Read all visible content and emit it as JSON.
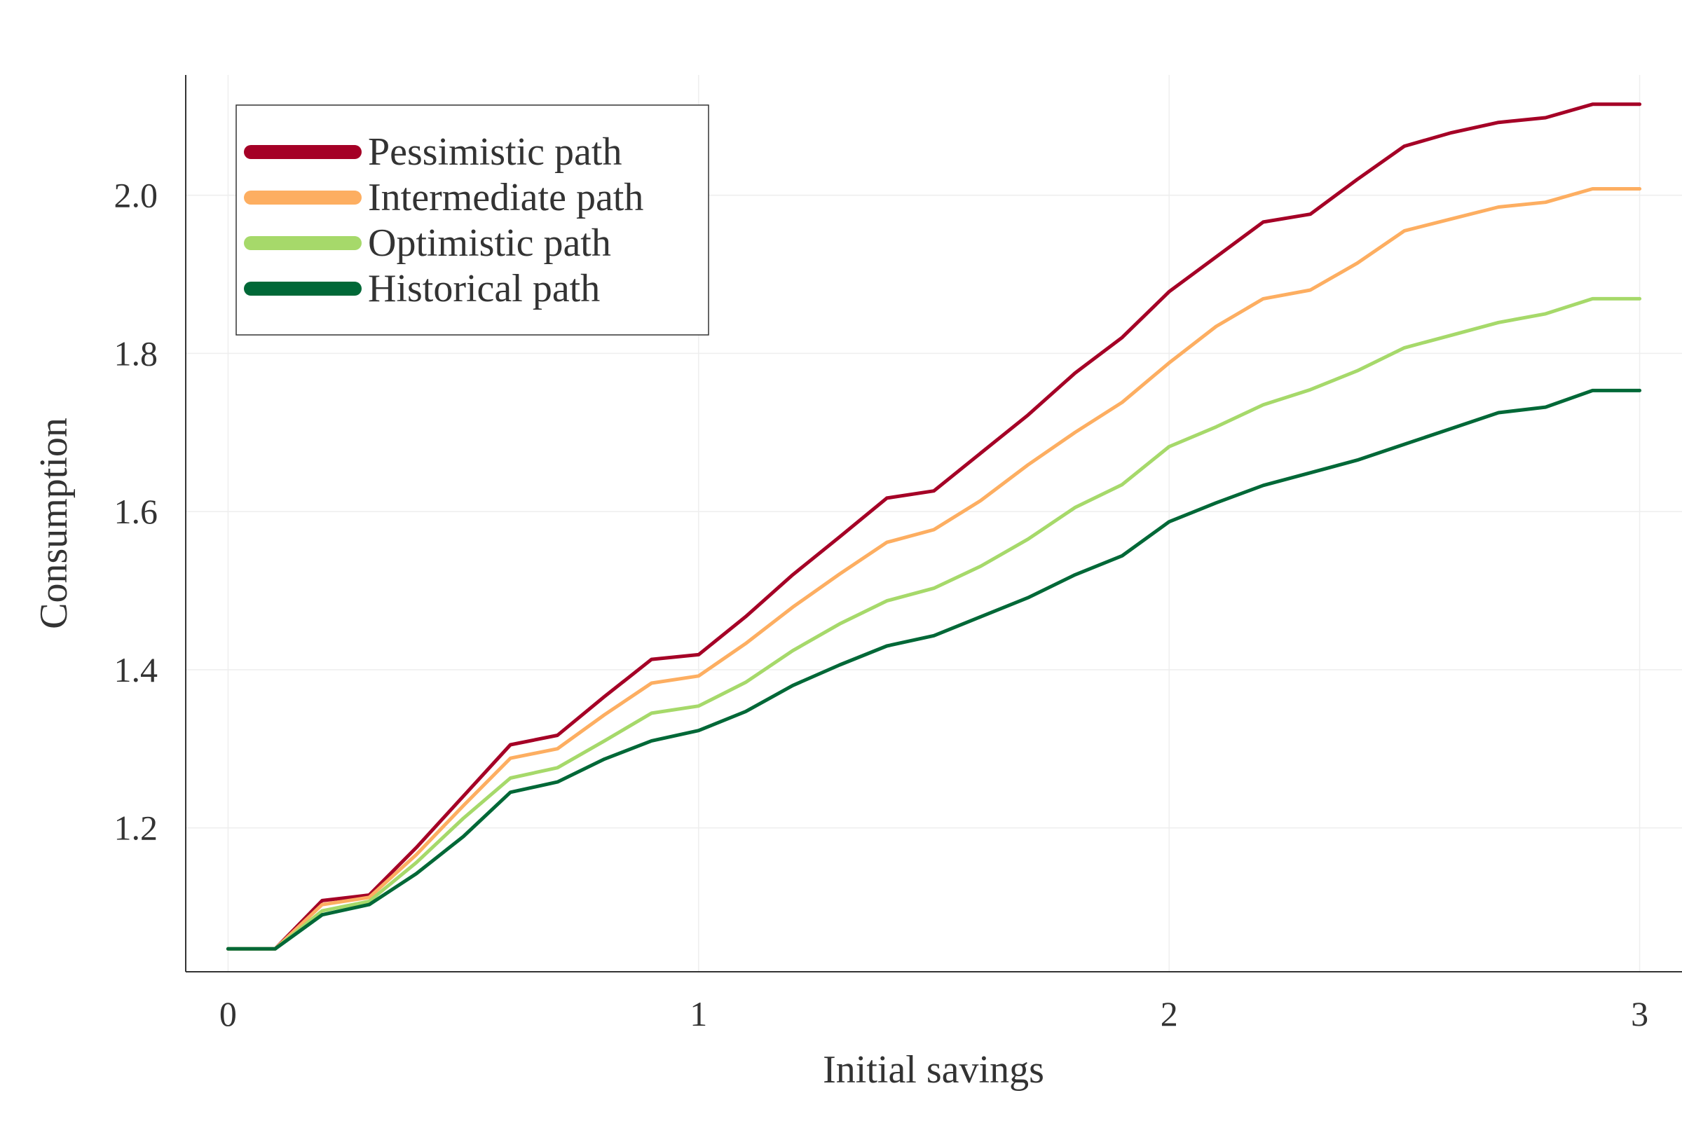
{
  "chart_data": {
    "type": "line",
    "xlabel": "Initial savings",
    "ylabel": "Consumption",
    "xlim": [
      -0.09,
      3.09
    ],
    "ylim": [
      1.018,
      2.152
    ],
    "xticks": [
      0,
      1,
      2,
      3
    ],
    "xtick_labels": [
      "0",
      "1",
      "2",
      "3"
    ],
    "yticks": [
      1.2,
      1.4,
      1.6,
      1.8,
      2.0
    ],
    "ytick_labels": [
      "1.2",
      "1.4",
      "1.6",
      "1.8",
      "2.0"
    ],
    "grid": true,
    "legend_position": "top-left",
    "x": [
      0.0,
      0.1,
      0.2,
      0.3,
      0.4,
      0.5,
      0.6,
      0.7,
      0.8,
      0.9,
      1.0,
      1.1,
      1.2,
      1.3,
      1.4,
      1.5,
      1.6,
      1.7,
      1.8,
      1.9,
      2.0,
      2.1,
      2.2,
      2.3,
      2.4,
      2.5,
      2.6,
      2.7,
      2.8,
      2.9,
      3.0
    ],
    "series": [
      {
        "name": "Pessimistic path",
        "color": "#a50026",
        "values": [
          1.047,
          1.047,
          1.108,
          1.115,
          1.175,
          1.24,
          1.305,
          1.317,
          1.366,
          1.413,
          1.419,
          1.467,
          1.52,
          1.568,
          1.617,
          1.626,
          1.674,
          1.722,
          1.775,
          1.82,
          1.878,
          1.922,
          1.966,
          1.976,
          2.02,
          2.062,
          2.079,
          2.092,
          2.098,
          2.115,
          2.115
        ]
      },
      {
        "name": "Intermediate path",
        "color": "#fdae61",
        "values": [
          1.047,
          1.047,
          1.103,
          1.112,
          1.166,
          1.228,
          1.288,
          1.3,
          1.343,
          1.383,
          1.392,
          1.433,
          1.479,
          1.521,
          1.561,
          1.577,
          1.614,
          1.659,
          1.7,
          1.738,
          1.788,
          1.834,
          1.869,
          1.88,
          1.914,
          1.955,
          1.97,
          1.985,
          1.991,
          2.008,
          2.008
        ]
      },
      {
        "name": "Optimistic path",
        "color": "#a6d96a",
        "values": [
          1.047,
          1.047,
          1.095,
          1.107,
          1.156,
          1.212,
          1.263,
          1.276,
          1.31,
          1.345,
          1.354,
          1.384,
          1.424,
          1.458,
          1.487,
          1.503,
          1.531,
          1.565,
          1.605,
          1.634,
          1.682,
          1.707,
          1.735,
          1.754,
          1.778,
          1.807,
          1.823,
          1.839,
          1.85,
          1.869,
          1.869
        ]
      },
      {
        "name": "Historical path",
        "color": "#006837",
        "values": [
          1.047,
          1.047,
          1.09,
          1.103,
          1.142,
          1.189,
          1.245,
          1.258,
          1.287,
          1.31,
          1.323,
          1.347,
          1.38,
          1.406,
          1.43,
          1.443,
          1.467,
          1.491,
          1.52,
          1.544,
          1.587,
          1.611,
          1.633,
          1.649,
          1.665,
          1.685,
          1.705,
          1.725,
          1.732,
          1.753,
          1.753
        ]
      }
    ]
  }
}
